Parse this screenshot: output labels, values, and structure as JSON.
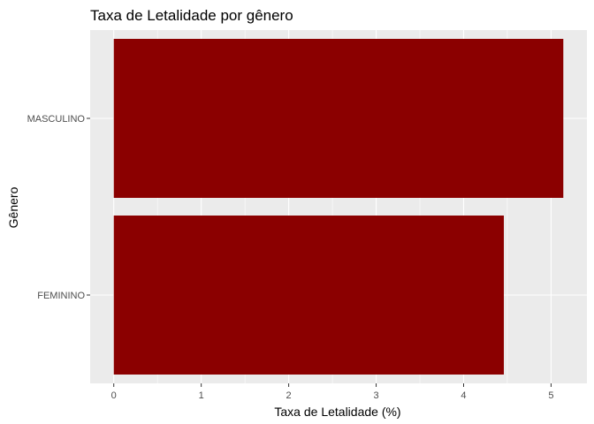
{
  "chart_data": {
    "type": "bar",
    "orientation": "horizontal",
    "title": "Taxa de Letalidade por gênero",
    "xlabel": "Taxa de Letalidade (%)",
    "ylabel": "Gênero",
    "categories": [
      "MASCULINO",
      "FEMININO"
    ],
    "values": [
      5.14,
      4.46
    ],
    "xlim": [
      -0.27,
      5.41
    ],
    "xticks": [
      0,
      1,
      2,
      3,
      4,
      5
    ],
    "grid": true,
    "legend": "none",
    "colors": {
      "bar": "#8b0000",
      "panel": "#ebebeb",
      "gridline": "#ffffff",
      "tick_text": "#4d4d4d",
      "tick_mark": "#333333"
    }
  }
}
